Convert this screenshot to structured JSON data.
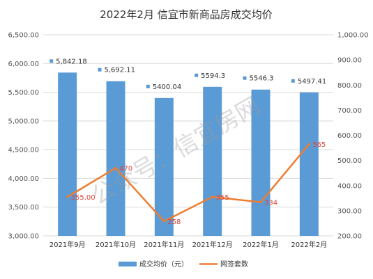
{
  "chart_data": {
    "type": "bar",
    "title": "2022年2月 信宜市新商品房成交均价",
    "categories": [
      "2021年9月",
      "2021年10月",
      "2021年11月",
      "2021年12月",
      "2022年1月",
      "2022年2月"
    ],
    "series": [
      {
        "name": "成交均价（元）",
        "type": "bar",
        "axis": "left",
        "color": "#5b9bd5",
        "values": [
          5842.18,
          5692.11,
          5400.04,
          5594.3,
          5546.3,
          5497.41
        ],
        "labels": [
          "5,842.18",
          "5,692.11",
          "5400.04",
          "5594.3",
          "5546.3",
          "5497.41"
        ]
      },
      {
        "name": "网签套数",
        "type": "line",
        "axis": "right",
        "color": "#ed7d31",
        "values": [
          355,
          470,
          258,
          355,
          334,
          565
        ],
        "labels": [
          "355.00",
          "470",
          "258",
          "355",
          "334",
          "565"
        ]
      }
    ],
    "y_left": {
      "min": 3000,
      "max": 6500,
      "ticks": [
        "3,000.00",
        "3,500.00",
        "4,000.00",
        "4,500.00",
        "5,000.00",
        "5,500.00",
        "6,000.00",
        "6,500.00"
      ]
    },
    "y_right": {
      "min": 200,
      "max": 1000,
      "ticks": [
        "200.00",
        "300.00",
        "400.00",
        "500.00",
        "600.00",
        "700.00",
        "800.00",
        "900.00",
        "1,000.00"
      ]
    },
    "grid": true,
    "legend_position": "bottom",
    "watermark": "公众号：信宜房网"
  }
}
